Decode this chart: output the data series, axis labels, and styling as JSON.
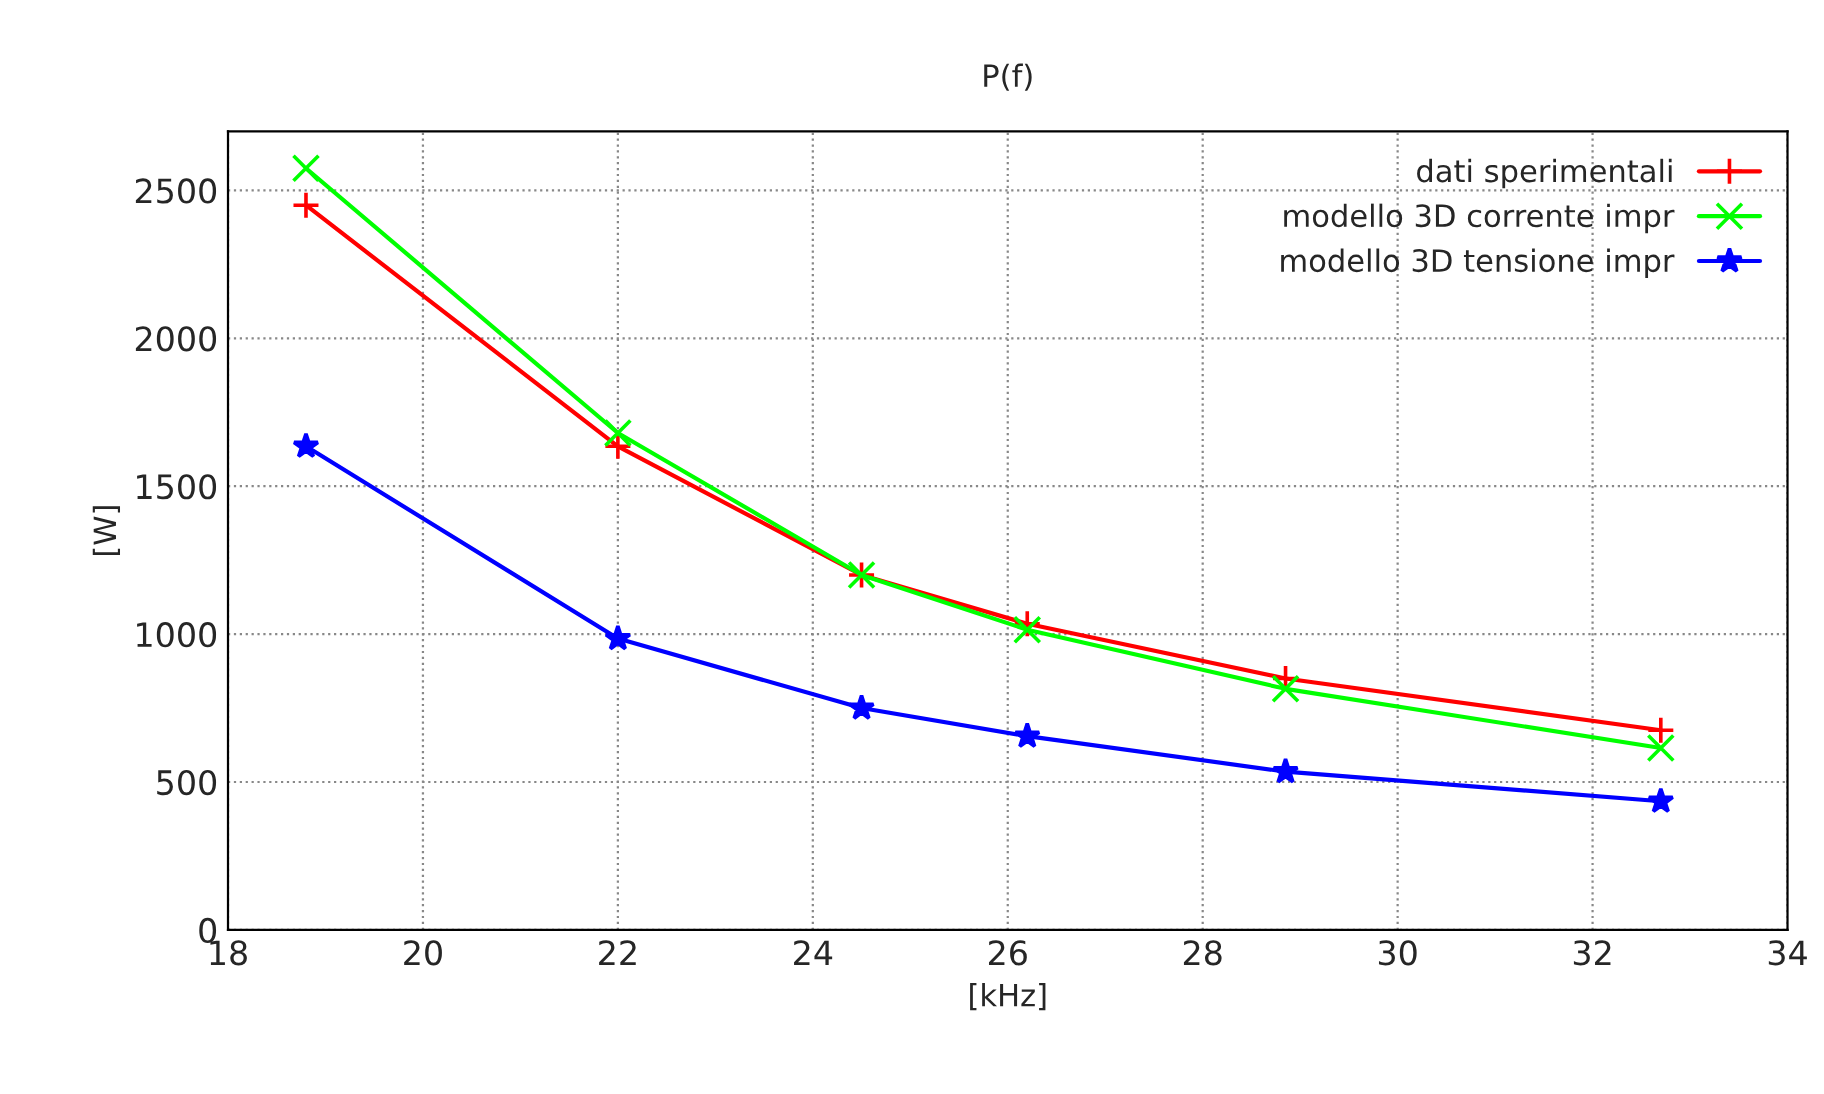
{
  "chart_data": {
    "type": "line",
    "title": "P(f)",
    "xlabel": "[kHz]",
    "ylabel": "[W]",
    "x": [
      18.8,
      22,
      24.5,
      26.2,
      28.85,
      32.7
    ],
    "series": [
      {
        "name": "dati sperimentali",
        "color": "#ff0000",
        "marker": "cross",
        "values": [
          2450,
          1635,
          1200,
          1035,
          850,
          675
        ]
      },
      {
        "name": "modello 3D corrente impr",
        "color": "#00ff00",
        "marker": "x",
        "values": [
          2575,
          1680,
          1200,
          1015,
          815,
          615
        ]
      },
      {
        "name": "modello 3D tensione impr",
        "color": "#0000ff",
        "marker": "star",
        "values": [
          1635,
          985,
          750,
          655,
          535,
          435
        ]
      }
    ],
    "xlim": [
      18,
      34
    ],
    "xticks": [
      18,
      20,
      22,
      24,
      26,
      28,
      30,
      32,
      34
    ],
    "ylim": [
      0,
      2700
    ],
    "yticks": [
      0,
      500,
      1000,
      1500,
      2000,
      2500
    ],
    "grid": true,
    "legend": "top right",
    "line_style": "solid"
  }
}
